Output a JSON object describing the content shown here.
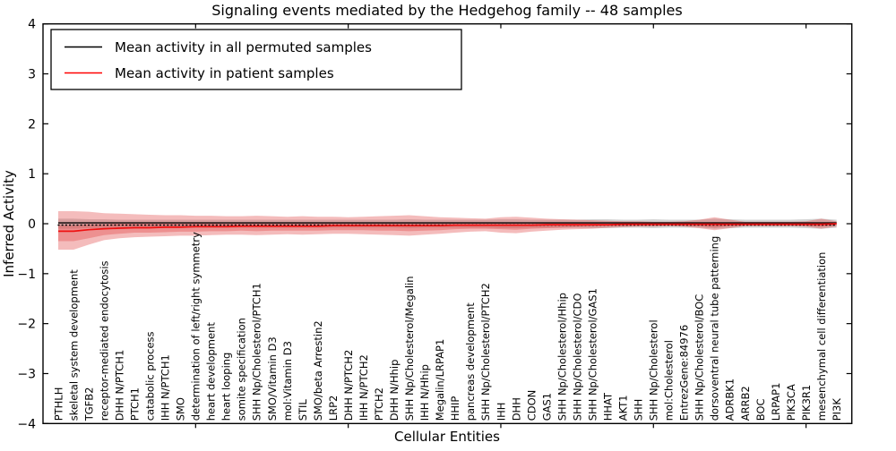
{
  "title": "Signaling events mediated by the Hedgehog family -- 48 samples",
  "axes": {
    "y_label": "Inferred Activity",
    "x_label": "Cellular Entities",
    "y_tick_labels": [
      "4",
      "3",
      "2",
      "1",
      "0",
      "-1",
      "-2",
      "-3",
      "-4"
    ]
  },
  "legend": {
    "entries": [
      {
        "label": "Mean activity in all permuted samples",
        "color": "#000000"
      },
      {
        "label": "Mean activity in patient samples",
        "color": "#ff0000"
      }
    ]
  },
  "colors": {
    "patient_line": "#ee1111",
    "permuted_line": "#000000",
    "patient_band": "#e04040",
    "permuted_band": "#a0a0a0",
    "frame": "#000000"
  },
  "chart_data": {
    "type": "line",
    "title": "Signaling events mediated by the Hedgehog family -- 48 samples",
    "xlabel": "Cellular Entities",
    "ylabel": "Inferred Activity",
    "ylim": [
      -4,
      4
    ],
    "y_ticks": [
      4,
      3,
      2,
      1,
      0,
      -1,
      -2,
      -3,
      -4
    ],
    "x_major_ticks": [
      10,
      20,
      30,
      40,
      50
    ],
    "grid": false,
    "legend_position": "upper left",
    "categories": [
      "PTHLH",
      "skeletal system development",
      "TGFB2",
      "receptor-mediated endocytosis",
      "DHH N/PTCH1",
      "PTCH1",
      "catabolic process",
      "IHH N/PTCH1",
      "SMO",
      "determination of left/right symmetry",
      "heart development",
      "heart looping",
      "somite specification",
      "SHH Np/Cholesterol/PTCH1",
      "SMO/Vitamin D3",
      "mol:Vitamin D3",
      "STIL",
      "SMO/beta Arrestin2",
      "LRP2",
      "DHH N/PTCH2",
      "IHH N/PTCH2",
      "PTCH2",
      "DHH N/Hhip",
      "SHH Np/Cholesterol/Megalin",
      "IHH N/Hhip",
      "Megalin/LRPAP1",
      "HHIP",
      "pancreas development",
      "SHH Np/Cholesterol/PTCH2",
      "IHH",
      "DHH",
      "CDON",
      "GAS1",
      "SHH Np/Cholesterol/Hhip",
      "SHH Np/Cholesterol/CDO",
      "SHH Np/Cholesterol/GAS1",
      "HHAT",
      "AKT1",
      "SHH",
      "SHH Np/Cholesterol",
      "mol:Cholesterol",
      "EntrezGene:84976",
      "SHH Np/Cholesterol/BOC",
      "dorsoventral neural tube patterning",
      "ADRBK1",
      "ARRB2",
      "BOC",
      "LRPAP1",
      "PIK3CA",
      "PIK3R1",
      "mesenchymal cell differentiation",
      "PI3K"
    ],
    "series": [
      {
        "name": "Mean activity in all permuted samples",
        "values": [
          0,
          0,
          0,
          0,
          0,
          0,
          0,
          0,
          0,
          0,
          0,
          0,
          0,
          0,
          0,
          0,
          0,
          0,
          0,
          0,
          0,
          0,
          0,
          0,
          0,
          0,
          0,
          0,
          0,
          0,
          0,
          0,
          0,
          0,
          0,
          0,
          0,
          0,
          0,
          0,
          0,
          0,
          0,
          0,
          0,
          0,
          0,
          0,
          0,
          0,
          0,
          0
        ]
      },
      {
        "name": "Mean activity in patient samples",
        "values": [
          -0.15,
          -0.15,
          -0.12,
          -0.1,
          -0.09,
          -0.08,
          -0.08,
          -0.07,
          -0.07,
          -0.06,
          -0.06,
          -0.06,
          -0.05,
          -0.05,
          -0.05,
          -0.05,
          -0.05,
          -0.05,
          -0.04,
          -0.04,
          -0.04,
          -0.04,
          -0.04,
          -0.04,
          -0.04,
          -0.04,
          -0.03,
          -0.03,
          -0.03,
          -0.03,
          -0.03,
          -0.03,
          -0.02,
          -0.02,
          -0.02,
          -0.02,
          -0.02,
          -0.01,
          -0.01,
          -0.01,
          -0.01,
          -0.01,
          -0.01,
          -0.01,
          -0.01,
          -0.01,
          -0.01,
          -0.01,
          -0.01,
          -0.01,
          -0.01,
          0.0
        ]
      }
    ],
    "bands": {
      "patient_outer_top": [
        0.25,
        0.25,
        0.24,
        0.21,
        0.2,
        0.19,
        0.18,
        0.17,
        0.17,
        0.16,
        0.16,
        0.15,
        0.15,
        0.16,
        0.15,
        0.14,
        0.15,
        0.14,
        0.14,
        0.13,
        0.14,
        0.15,
        0.16,
        0.17,
        0.15,
        0.13,
        0.12,
        0.11,
        0.1,
        0.13,
        0.14,
        0.12,
        0.1,
        0.09,
        0.08,
        0.07,
        0.06,
        0.05,
        0.05,
        0.04,
        0.04,
        0.05,
        0.08,
        0.13,
        0.08,
        0.04,
        0.04,
        0.04,
        0.04,
        0.05,
        0.1,
        0.05
      ],
      "patient_outer_bottom": [
        -0.52,
        -0.52,
        -0.42,
        -0.33,
        -0.29,
        -0.27,
        -0.26,
        -0.25,
        -0.24,
        -0.24,
        -0.23,
        -0.22,
        -0.22,
        -0.23,
        -0.22,
        -0.21,
        -0.22,
        -0.21,
        -0.2,
        -0.2,
        -0.21,
        -0.22,
        -0.23,
        -0.24,
        -0.22,
        -0.2,
        -0.18,
        -0.16,
        -0.15,
        -0.18,
        -0.19,
        -0.16,
        -0.14,
        -0.12,
        -0.11,
        -0.1,
        -0.08,
        -0.07,
        -0.06,
        -0.06,
        -0.05,
        -0.06,
        -0.09,
        -0.13,
        -0.09,
        -0.05,
        -0.05,
        -0.05,
        -0.05,
        -0.06,
        -0.1,
        -0.06
      ],
      "patient_inner_top": [
        -0.03,
        -0.03,
        -0.01,
        -0.01,
        0.0,
        0.0,
        0.0,
        0.0,
        0.0,
        0.01,
        0.01,
        0.0,
        0.01,
        0.01,
        0.01,
        0.01,
        0.01,
        0.01,
        0.01,
        0.01,
        0.01,
        0.02,
        0.02,
        0.02,
        0.02,
        0.01,
        0.02,
        0.01,
        0.01,
        0.02,
        0.02,
        0.02,
        0.02,
        0.01,
        0.01,
        0.01,
        0.0,
        0.01,
        0.01,
        0.01,
        0.01,
        0.01,
        0.02,
        0.03,
        0.02,
        0.01,
        0.01,
        0.01,
        0.01,
        0.01,
        0.02,
        0.02
      ],
      "patient_inner_bottom": [
        -0.35,
        -0.35,
        -0.29,
        -0.23,
        -0.2,
        -0.18,
        -0.18,
        -0.17,
        -0.16,
        -0.16,
        -0.15,
        -0.15,
        -0.14,
        -0.15,
        -0.14,
        -0.14,
        -0.14,
        -0.14,
        -0.13,
        -0.13,
        -0.13,
        -0.14,
        -0.14,
        -0.15,
        -0.14,
        -0.13,
        -0.11,
        -0.1,
        -0.1,
        -0.11,
        -0.12,
        -0.1,
        -0.09,
        -0.08,
        -0.07,
        -0.06,
        -0.05,
        -0.04,
        -0.04,
        -0.04,
        -0.03,
        -0.04,
        -0.05,
        -0.08,
        -0.05,
        -0.03,
        -0.03,
        -0.03,
        -0.03,
        -0.04,
        -0.06,
        -0.03
      ],
      "permuted_top": [
        0.1,
        0.1,
        0.09,
        0.09,
        0.08,
        0.08,
        0.08,
        0.08,
        0.08,
        0.08,
        0.08,
        0.08,
        0.08,
        0.08,
        0.08,
        0.08,
        0.08,
        0.08,
        0.08,
        0.08,
        0.08,
        0.08,
        0.08,
        0.09,
        0.08,
        0.08,
        0.08,
        0.08,
        0.08,
        0.09,
        0.09,
        0.08,
        0.08,
        0.08,
        0.08,
        0.09,
        0.09,
        0.08,
        0.08,
        0.09,
        0.08,
        0.08,
        0.08,
        0.1,
        0.09,
        0.08,
        0.08,
        0.08,
        0.08,
        0.09,
        0.1,
        0.08
      ],
      "permuted_bottom": [
        -0.1,
        -0.1,
        -0.09,
        -0.09,
        -0.08,
        -0.08,
        -0.08,
        -0.08,
        -0.08,
        -0.08,
        -0.08,
        -0.08,
        -0.08,
        -0.08,
        -0.08,
        -0.08,
        -0.08,
        -0.08,
        -0.08,
        -0.08,
        -0.08,
        -0.08,
        -0.08,
        -0.09,
        -0.08,
        -0.08,
        -0.08,
        -0.08,
        -0.08,
        -0.09,
        -0.09,
        -0.08,
        -0.08,
        -0.08,
        -0.08,
        -0.09,
        -0.09,
        -0.08,
        -0.08,
        -0.09,
        -0.08,
        -0.08,
        -0.08,
        -0.1,
        -0.09,
        -0.08,
        -0.08,
        -0.08,
        -0.08,
        -0.09,
        -0.1,
        -0.08
      ]
    }
  }
}
